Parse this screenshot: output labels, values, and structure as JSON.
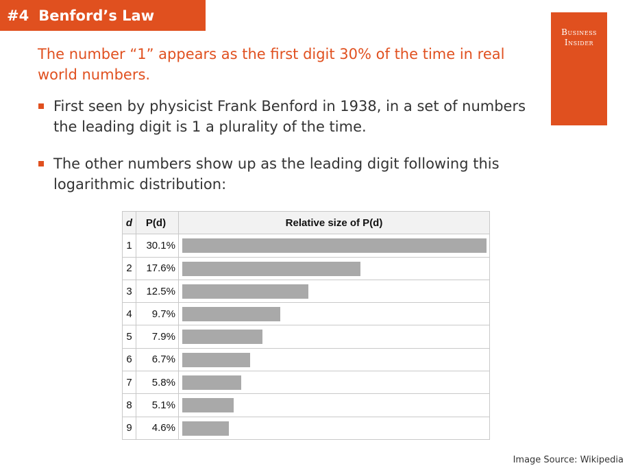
{
  "header": {
    "number": "#4",
    "title": "Benford’s Law"
  },
  "logo": {
    "line1": "Business",
    "line2": "Insider"
  },
  "lead_text": "The number “1” appears as the first digit 30% of the time in real world numbers.",
  "bullets": [
    "First seen by physicist Frank Benford in 1938, in a set of numbers the leading digit is 1 a plurality of the time.",
    "The other numbers show up as the leading digit following this logarithmic distribution:"
  ],
  "table": {
    "headers": {
      "d": "d",
      "p": "P(d)",
      "rel": "Relative size of P(d)"
    },
    "rows": [
      {
        "d": "1",
        "p": "30.1%",
        "value": 30.1
      },
      {
        "d": "2",
        "p": "17.6%",
        "value": 17.6
      },
      {
        "d": "3",
        "p": "12.5%",
        "value": 12.5
      },
      {
        "d": "4",
        "p": "9.7%",
        "value": 9.7
      },
      {
        "d": "5",
        "p": "7.9%",
        "value": 7.9
      },
      {
        "d": "6",
        "p": "6.7%",
        "value": 6.7
      },
      {
        "d": "7",
        "p": "5.8%",
        "value": 5.8
      },
      {
        "d": "8",
        "p": "5.1%",
        "value": 5.1
      },
      {
        "d": "9",
        "p": "4.6%",
        "value": 4.6
      }
    ]
  },
  "source": "Image Source: Wikipedia",
  "colors": {
    "accent": "#e0501f",
    "bar": "#a9a9a9"
  }
}
